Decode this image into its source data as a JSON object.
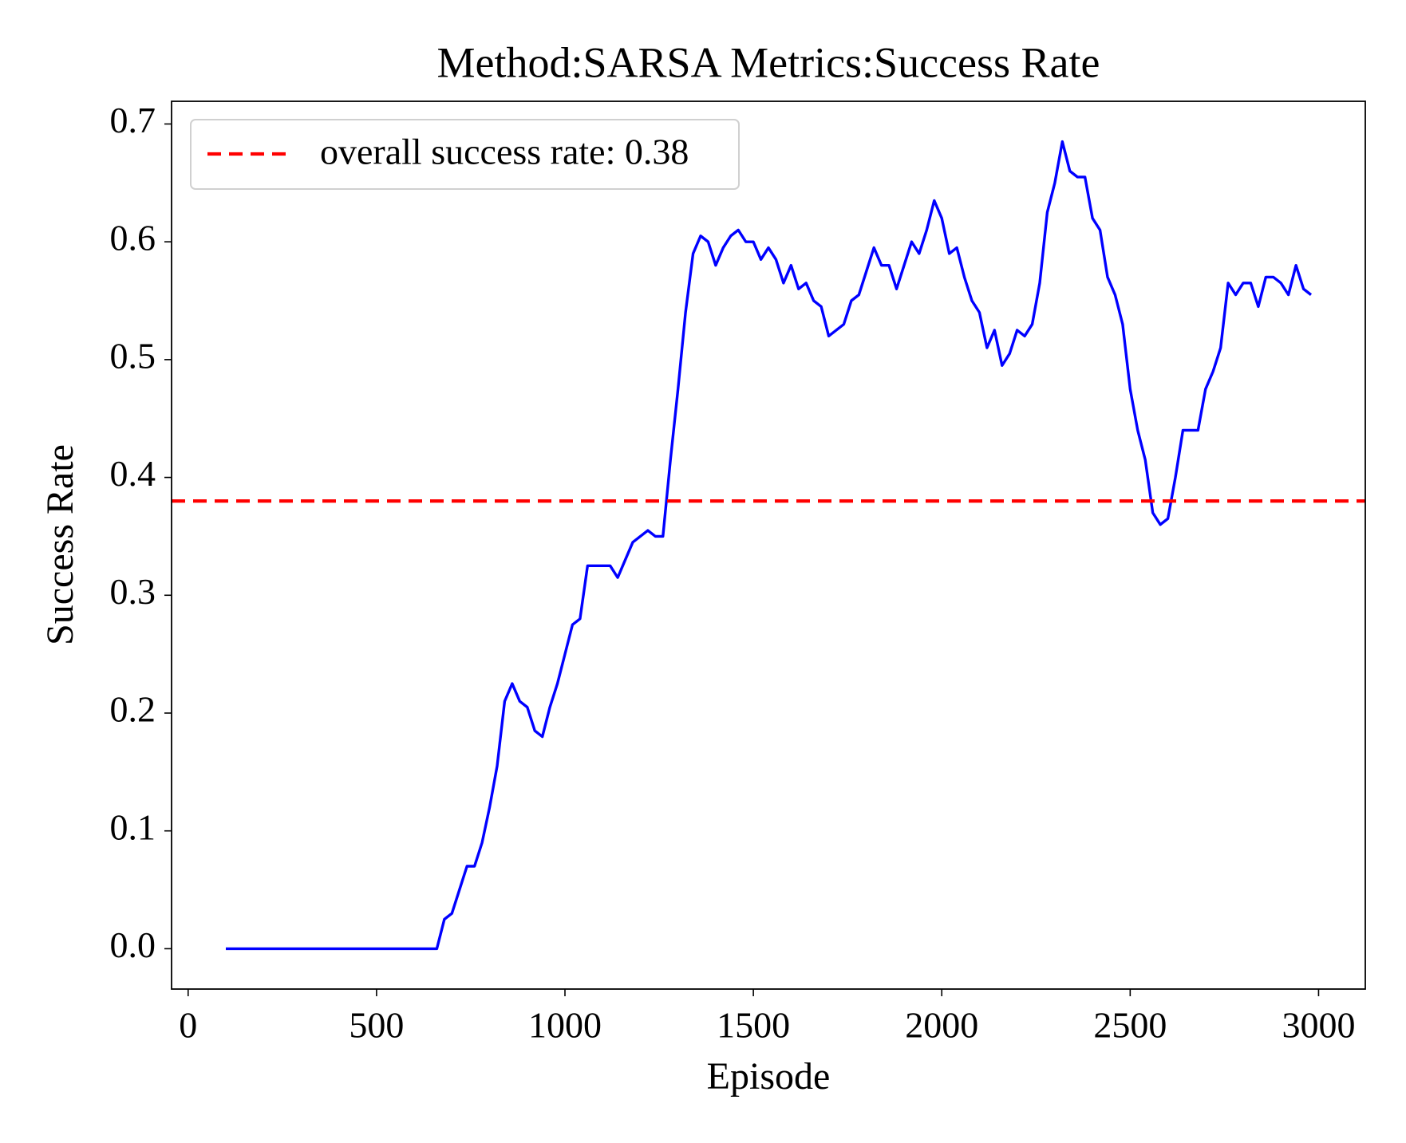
{
  "chart_data": {
    "type": "line",
    "title": "Method:SARSA   Metrics:Success Rate",
    "xlabel": "Episode",
    "ylabel": "Success Rate",
    "x": [
      100,
      120,
      140,
      160,
      180,
      200,
      220,
      240,
      260,
      280,
      300,
      320,
      340,
      360,
      380,
      400,
      420,
      440,
      460,
      480,
      500,
      520,
      540,
      560,
      580,
      600,
      620,
      640,
      660,
      680,
      700,
      720,
      740,
      760,
      780,
      800,
      820,
      840,
      860,
      880,
      900,
      920,
      940,
      960,
      980,
      1000,
      1020,
      1040,
      1060,
      1080,
      1100,
      1120,
      1140,
      1160,
      1180,
      1200,
      1220,
      1240,
      1260,
      1280,
      1300,
      1320,
      1340,
      1360,
      1380,
      1400,
      1420,
      1440,
      1460,
      1480,
      1500,
      1520,
      1540,
      1560,
      1580,
      1600,
      1620,
      1640,
      1660,
      1680,
      1700,
      1720,
      1740,
      1760,
      1780,
      1800,
      1820,
      1840,
      1860,
      1880,
      1900,
      1920,
      1940,
      1960,
      1980,
      2000,
      2020,
      2040,
      2060,
      2080,
      2100,
      2120,
      2140,
      2160,
      2180,
      2200,
      2220,
      2240,
      2260,
      2280,
      2300,
      2320,
      2340,
      2360,
      2380,
      2400,
      2420,
      2440,
      2460,
      2480,
      2500,
      2520,
      2540,
      2560,
      2580,
      2600,
      2620,
      2640,
      2660,
      2680,
      2700,
      2720,
      2740,
      2760,
      2780,
      2800,
      2820,
      2840,
      2860,
      2880,
      2900,
      2920,
      2940,
      2960,
      2980
    ],
    "series": [
      {
        "color": "#0000ff",
        "values": [
          0,
          0,
          0,
          0,
          0,
          0,
          0,
          0,
          0,
          0,
          0,
          0,
          0,
          0,
          0,
          0,
          0,
          0,
          0,
          0,
          0,
          0,
          0,
          0,
          0,
          0,
          0,
          0,
          0,
          0.025,
          0.03,
          0.05,
          0.07,
          0.07,
          0.09,
          0.12,
          0.155,
          0.21,
          0.225,
          0.21,
          0.205,
          0.185,
          0.18,
          0.205,
          0.225,
          0.25,
          0.275,
          0.28,
          0.325,
          0.325,
          0.325,
          0.325,
          0.315,
          0.33,
          0.345,
          0.35,
          0.355,
          0.35,
          0.35,
          0.415,
          0.475,
          0.54,
          0.59,
          0.605,
          0.6,
          0.58,
          0.595,
          0.605,
          0.61,
          0.6,
          0.6,
          0.585,
          0.595,
          0.585,
          0.565,
          0.58,
          0.56,
          0.565,
          0.55,
          0.545,
          0.52,
          0.525,
          0.53,
          0.55,
          0.555,
          0.575,
          0.595,
          0.58,
          0.58,
          0.56,
          0.58,
          0.6,
          0.59,
          0.61,
          0.635,
          0.62,
          0.59,
          0.595,
          0.57,
          0.55,
          0.54,
          0.51,
          0.525,
          0.495,
          0.505,
          0.525,
          0.52,
          0.53,
          0.565,
          0.625,
          0.65,
          0.685,
          0.66,
          0.655,
          0.655,
          0.62,
          0.61,
          0.57,
          0.555,
          0.53,
          0.475,
          0.44,
          0.415,
          0.37,
          0.36,
          0.365,
          0.4,
          0.44,
          0.44,
          0.44,
          0.475,
          0.49,
          0.51,
          0.565,
          0.555,
          0.565,
          0.565,
          0.545,
          0.57,
          0.57,
          0.565,
          0.555,
          0.58,
          0.56,
          0.555
        ]
      }
    ],
    "hline": {
      "value": 0.38,
      "label": "overall success rate: 0.38",
      "color": "#ff0000"
    },
    "xlim": [
      -44,
      3124
    ],
    "ylim": [
      -0.03425,
      0.71925
    ],
    "xticks": [
      0,
      500,
      1000,
      1500,
      2000,
      2500,
      3000
    ],
    "yticks": [
      {
        "value": 0,
        "label": "0.0"
      },
      0.1,
      0.2,
      0.3,
      0.4,
      0.5,
      0.6,
      0.7
    ],
    "legend": "upper left"
  }
}
